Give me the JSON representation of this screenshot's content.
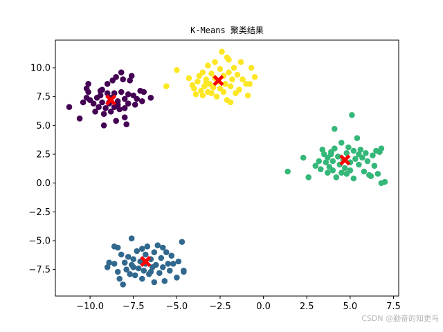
{
  "chart_data": {
    "type": "scatter",
    "title": "K-Means 聚类结果",
    "xlabel": "",
    "ylabel": "",
    "xlim": [
      -12.0,
      7.8
    ],
    "ylim": [
      -9.8,
      12.4
    ],
    "xticks": [
      -10.0,
      -7.5,
      -5.0,
      -2.5,
      0.0,
      2.5,
      5.0,
      7.5
    ],
    "xtick_labels": [
      "−10.0",
      "−7.5",
      "−5.0",
      "−2.5",
      "0.0",
      "2.5",
      "5.0",
      "7.5"
    ],
    "yticks": [
      -7.5,
      -5.0,
      -2.5,
      0.0,
      2.5,
      5.0,
      7.5,
      10.0
    ],
    "ytick_labels": [
      "−7.5",
      "−5.0",
      "−2.5",
      "0.0",
      "2.5",
      "5.0",
      "7.5",
      "10.0"
    ],
    "grid": false,
    "clusters": [
      {
        "color": "#440154",
        "points": [
          [
            -11.2,
            6.6
          ],
          [
            -10.6,
            5.6
          ],
          [
            -10.4,
            7.0
          ],
          [
            -10.2,
            7.4
          ],
          [
            -10.1,
            7.9
          ],
          [
            -10.1,
            8.6
          ],
          [
            -10.0,
            7.2
          ],
          [
            -9.8,
            6.9
          ],
          [
            -9.7,
            6.2
          ],
          [
            -9.6,
            7.4
          ],
          [
            -9.5,
            6.6
          ],
          [
            -9.4,
            7.6
          ],
          [
            -9.4,
            8.0
          ],
          [
            -9.3,
            7.0
          ],
          [
            -9.2,
            6.0
          ],
          [
            -9.2,
            5.0
          ],
          [
            -9.1,
            6.5
          ],
          [
            -9.0,
            7.8
          ],
          [
            -9.0,
            8.6
          ],
          [
            -8.9,
            6.9
          ],
          [
            -8.8,
            7.4
          ],
          [
            -8.8,
            6.2
          ],
          [
            -8.7,
            8.9
          ],
          [
            -8.6,
            6.6
          ],
          [
            -8.6,
            7.8
          ],
          [
            -8.5,
            9.2
          ],
          [
            -8.5,
            5.4
          ],
          [
            -8.4,
            7.1
          ],
          [
            -8.4,
            6.8
          ],
          [
            -8.3,
            6.4
          ],
          [
            -8.2,
            7.9
          ],
          [
            -8.2,
            9.6
          ],
          [
            -8.1,
            9.0
          ],
          [
            -8.0,
            6.5
          ],
          [
            -8.0,
            7.3
          ],
          [
            -8.0,
            5.7
          ],
          [
            -7.9,
            5.1
          ],
          [
            -7.8,
            6.9
          ],
          [
            -7.8,
            7.7
          ],
          [
            -7.7,
            8.9
          ],
          [
            -7.6,
            9.3
          ],
          [
            -7.5,
            7.6
          ],
          [
            -7.4,
            6.8
          ],
          [
            -7.3,
            7.3
          ],
          [
            -7.1,
            8.0
          ],
          [
            -6.9,
            7.9
          ],
          [
            -7.0,
            7.1
          ],
          [
            -6.5,
            7.4
          ],
          [
            -9.3,
            8.1
          ],
          [
            -10.2,
            8.2
          ],
          [
            -8.9,
            7.0
          ]
        ]
      },
      {
        "color": "#fde725",
        "points": [
          [
            -5.0,
            9.8
          ],
          [
            -5.6,
            8.4
          ],
          [
            -4.3,
            9.1
          ],
          [
            -4.1,
            8.5
          ],
          [
            -4.0,
            8.2
          ],
          [
            -3.9,
            7.7
          ],
          [
            -3.8,
            8.8
          ],
          [
            -3.7,
            9.3
          ],
          [
            -3.6,
            8.0
          ],
          [
            -3.5,
            9.6
          ],
          [
            -3.5,
            7.6
          ],
          [
            -3.4,
            8.4
          ],
          [
            -3.3,
            9.0
          ],
          [
            -3.2,
            10.2
          ],
          [
            -3.2,
            7.9
          ],
          [
            -3.1,
            8.6
          ],
          [
            -3.0,
            9.5
          ],
          [
            -3.0,
            7.8
          ],
          [
            -2.9,
            8.3
          ],
          [
            -2.8,
            10.5
          ],
          [
            -2.8,
            9.1
          ],
          [
            -2.7,
            7.5
          ],
          [
            -2.6,
            8.8
          ],
          [
            -2.5,
            9.9
          ],
          [
            -2.5,
            8.2
          ],
          [
            -2.4,
            11.4
          ],
          [
            -2.3,
            9.3
          ],
          [
            -2.3,
            7.9
          ],
          [
            -2.2,
            8.6
          ],
          [
            -2.1,
            10.9
          ],
          [
            -2.1,
            7.2
          ],
          [
            -2.0,
            9.6
          ],
          [
            -1.9,
            8.4
          ],
          [
            -1.9,
            7.0
          ],
          [
            -1.8,
            9.0
          ],
          [
            -1.7,
            10.0
          ],
          [
            -1.6,
            7.8
          ],
          [
            -1.5,
            9.4
          ],
          [
            -1.4,
            8.1
          ],
          [
            -1.3,
            10.5
          ],
          [
            -1.2,
            9.0
          ],
          [
            -1.0,
            8.6
          ],
          [
            -0.9,
            7.6
          ],
          [
            -0.8,
            8.6
          ],
          [
            -0.7,
            10.0
          ],
          [
            -0.5,
            9.2
          ],
          [
            -2.0,
            10.7
          ],
          [
            -3.3,
            8.7
          ]
        ]
      },
      {
        "color": "#35b779",
        "points": [
          [
            1.4,
            1.0
          ],
          [
            2.3,
            2.2
          ],
          [
            2.6,
            0.5
          ],
          [
            3.0,
            1.5
          ],
          [
            3.2,
            1.9
          ],
          [
            3.3,
            1.2
          ],
          [
            3.4,
            2.9
          ],
          [
            3.5,
            2.5
          ],
          [
            3.6,
            1.8
          ],
          [
            3.7,
            0.9
          ],
          [
            3.7,
            2.2
          ],
          [
            3.8,
            1.4
          ],
          [
            3.9,
            2.7
          ],
          [
            4.0,
            1.9
          ],
          [
            4.0,
            1.1
          ],
          [
            4.1,
            4.7
          ],
          [
            4.1,
            3.0
          ],
          [
            4.2,
            0.5
          ],
          [
            4.3,
            2.3
          ],
          [
            4.4,
            1.6
          ],
          [
            4.5,
            3.5
          ],
          [
            4.5,
            0.9
          ],
          [
            4.6,
            2.0
          ],
          [
            4.7,
            1.3
          ],
          [
            4.8,
            2.6
          ],
          [
            4.8,
            0.8
          ],
          [
            4.9,
            3.1
          ],
          [
            5.0,
            1.8
          ],
          [
            5.0,
            1.1
          ],
          [
            5.1,
            5.9
          ],
          [
            5.2,
            2.8
          ],
          [
            5.2,
            0.4
          ],
          [
            5.3,
            2.1
          ],
          [
            5.4,
            3.9
          ],
          [
            5.5,
            1.6
          ],
          [
            5.6,
            2.9
          ],
          [
            5.7,
            2.2
          ],
          [
            5.8,
            1.0
          ],
          [
            5.9,
            2.6
          ],
          [
            6.0,
            1.9
          ],
          [
            6.1,
            0.7
          ],
          [
            6.2,
            0.6
          ],
          [
            6.3,
            2.4
          ],
          [
            6.4,
            1.5
          ],
          [
            6.5,
            2.8
          ],
          [
            6.6,
            0.8
          ],
          [
            6.7,
            2.7
          ],
          [
            6.8,
            3.0
          ],
          [
            6.8,
            0.0
          ],
          [
            7.0,
            0.1
          ],
          [
            5.5,
            2.5
          ],
          [
            3.9,
            2.5
          ]
        ]
      },
      {
        "color": "#31688e",
        "points": [
          [
            -9.0,
            -7.3
          ],
          [
            -8.9,
            -6.9
          ],
          [
            -8.6,
            -7.0
          ],
          [
            -8.6,
            -5.5
          ],
          [
            -8.4,
            -7.7
          ],
          [
            -8.3,
            -8.3
          ],
          [
            -8.2,
            -6.2
          ],
          [
            -8.1,
            -8.8
          ],
          [
            -8.0,
            -6.9
          ],
          [
            -7.9,
            -7.5
          ],
          [
            -7.8,
            -6.4
          ],
          [
            -7.7,
            -7.9
          ],
          [
            -7.6,
            -4.8
          ],
          [
            -7.6,
            -7.1
          ],
          [
            -7.5,
            -6.6
          ],
          [
            -7.4,
            -8.0
          ],
          [
            -7.3,
            -5.9
          ],
          [
            -7.2,
            -7.4
          ],
          [
            -7.1,
            -6.8
          ],
          [
            -7.0,
            -5.7
          ],
          [
            -7.0,
            -8.3
          ],
          [
            -6.9,
            -7.6
          ],
          [
            -6.8,
            -6.2
          ],
          [
            -6.8,
            -7.0
          ],
          [
            -6.7,
            -5.5
          ],
          [
            -6.6,
            -7.9
          ],
          [
            -6.5,
            -6.6
          ],
          [
            -6.4,
            -7.3
          ],
          [
            -6.3,
            -8.6
          ],
          [
            -6.3,
            -6.0
          ],
          [
            -6.2,
            -7.1
          ],
          [
            -6.1,
            -5.4
          ],
          [
            -6.0,
            -7.8
          ],
          [
            -5.9,
            -6.5
          ],
          [
            -5.8,
            -7.3
          ],
          [
            -5.7,
            -8.5
          ],
          [
            -5.6,
            -6.0
          ],
          [
            -5.5,
            -7.0
          ],
          [
            -5.4,
            -7.6
          ],
          [
            -5.3,
            -6.3
          ],
          [
            -5.2,
            -7.0
          ],
          [
            -5.0,
            -8.2
          ],
          [
            -4.9,
            -6.8
          ],
          [
            -4.7,
            -5.1
          ],
          [
            -4.6,
            -7.6
          ],
          [
            -4.6,
            -7.7
          ],
          [
            -8.4,
            -5.6
          ],
          [
            -5.8,
            -5.6
          ],
          [
            -6.5,
            -7.7
          ],
          [
            -7.5,
            -7.3
          ]
        ]
      }
    ],
    "centroids": {
      "color": "#ff0000",
      "marker": "X",
      "points": [
        [
          -8.8,
          7.2
        ],
        [
          -2.6,
          8.9
        ],
        [
          4.7,
          2.0
        ],
        [
          -6.8,
          -6.8
        ]
      ]
    }
  },
  "watermark": "CSDN @勤奋的知更鸟"
}
